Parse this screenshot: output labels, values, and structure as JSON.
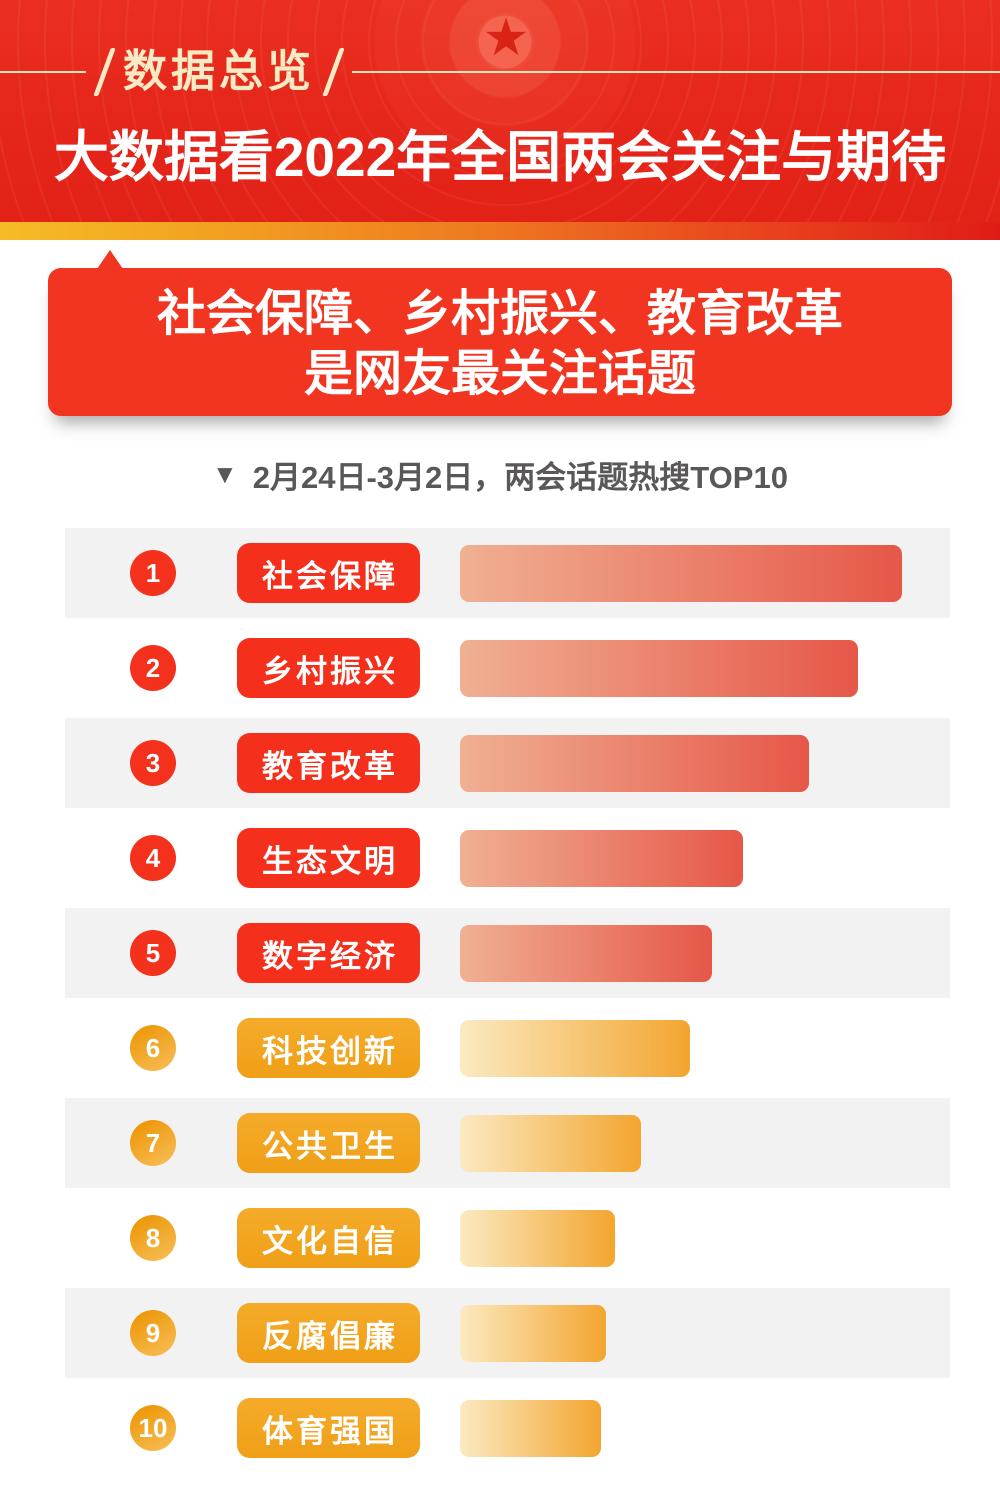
{
  "header": {
    "badge": "数据总览",
    "title": "大数据看2022年全国两会关注与期待"
  },
  "callout": {
    "line1": "社会保障、乡村振兴、教育改革",
    "line2": "是网友最关注话题"
  },
  "subtitle": {
    "icon": "▼",
    "text": "2月24日-3月2日，两会话题热搜TOP10"
  },
  "chart_data": {
    "type": "bar",
    "orientation": "horizontal",
    "title": "2月24日-3月2日，两会话题热搜TOP10",
    "date_range": "2月24日-3月2日",
    "value_labels_shown": false,
    "values_note": "relative heat, % of longest bar, estimated from bar lengths",
    "categories": [
      "社会保障",
      "乡村振兴",
      "教育改革",
      "生态文明",
      "数字经济",
      "科技创新",
      "公共卫生",
      "文化自信",
      "反腐倡廉",
      "体育强国"
    ],
    "values": [
      100,
      90,
      79,
      64,
      57,
      52,
      41,
      35,
      33,
      32
    ],
    "rows": [
      {
        "rank": 1,
        "label": "社会保障",
        "value": 100,
        "theme": "red"
      },
      {
        "rank": 2,
        "label": "乡村振兴",
        "value": 90,
        "theme": "red"
      },
      {
        "rank": 3,
        "label": "教育改革",
        "value": 79,
        "theme": "red"
      },
      {
        "rank": 4,
        "label": "生态文明",
        "value": 64,
        "theme": "red"
      },
      {
        "rank": 5,
        "label": "数字经济",
        "value": 57,
        "theme": "red"
      },
      {
        "rank": 6,
        "label": "科技创新",
        "value": 52,
        "theme": "gold"
      },
      {
        "rank": 7,
        "label": "公共卫生",
        "value": 41,
        "theme": "gold"
      },
      {
        "rank": 8,
        "label": "文化自信",
        "value": 35,
        "theme": "gold"
      },
      {
        "rank": 9,
        "label": "反腐倡廉",
        "value": 33,
        "theme": "gold"
      },
      {
        "rank": 10,
        "label": "体育强国",
        "value": 32,
        "theme": "gold"
      }
    ]
  },
  "colors": {
    "header_red": "#E8291B",
    "strip_gradient_left": "#F6BC26",
    "strip_gradient_right": "#E01C16",
    "cream_gold_text": "#F6EBC4",
    "callout_red": "#F23520",
    "accent_red": "#F4301C",
    "accent_gold": "#F2A41F",
    "bar_red_start": "#F0B093",
    "bar_red_end": "#E65748",
    "bar_gold_start": "#FBEAC2",
    "bar_gold_end": "#F3A52F",
    "subtitle_gray": "#595757",
    "row_stripe_gray": "#F2F2F2",
    "title_white": "#FFFFFF"
  }
}
